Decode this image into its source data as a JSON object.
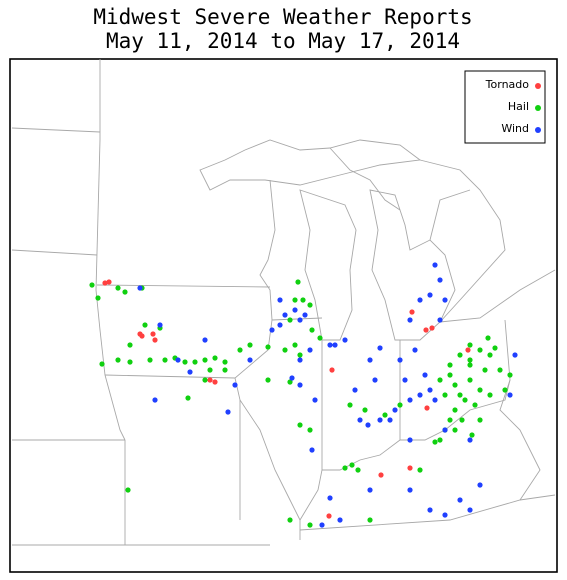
{
  "header": {
    "title_line_1": "Midwest Severe Weather Reports",
    "title_line_2": "May 11, 2014 to May 17, 2014"
  },
  "legend": {
    "items": [
      {
        "name": "Tornado",
        "color": "#ff4040"
      },
      {
        "name": "Hail",
        "color": "#10d010"
      },
      {
        "name": "Wind",
        "color": "#2040ff"
      }
    ]
  }
}
